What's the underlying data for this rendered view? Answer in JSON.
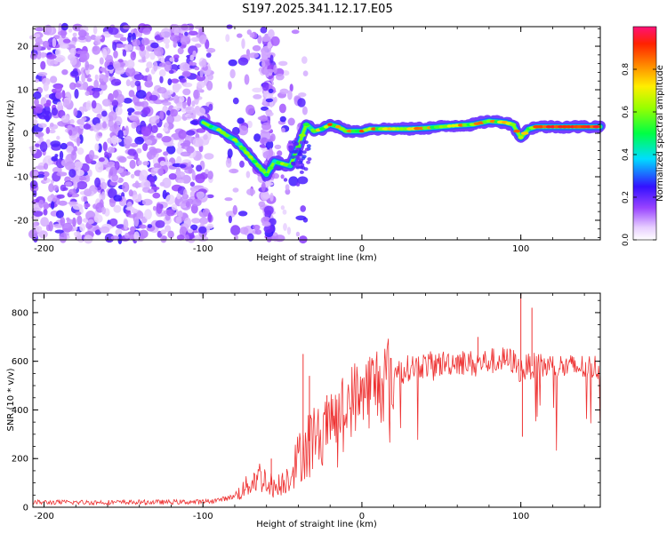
{
  "figure": {
    "title": "S197.2025.341.12.17.E05"
  },
  "chart_data": [
    {
      "type": "heatmap",
      "name": "spectrogram",
      "xlabel": "Height of straight line (km)",
      "ylabel": "Frequency (Hz)",
      "xlim": [
        -207,
        150
      ],
      "ylim": [
        -24.5,
        24.5
      ],
      "xticks": [
        -200,
        -100,
        0,
        100
      ],
      "yticks": [
        -20,
        -10,
        0,
        10,
        20
      ],
      "ridge": {
        "description": "dominant frequency track (Hz) vs height (km)",
        "x": [
          -100,
          -95,
          -90,
          -85,
          -80,
          -75,
          -70,
          -65,
          -60,
          -55,
          -50,
          -45,
          -40,
          -37,
          -35,
          -30,
          -25,
          -20,
          -15,
          -10,
          -5,
          0,
          5,
          10,
          20,
          30,
          40,
          50,
          60,
          70,
          80,
          90,
          95,
          100,
          105,
          110,
          120,
          130,
          140,
          150
        ],
        "y": [
          2.5,
          1.5,
          0.8,
          -0.5,
          -1.5,
          -3.5,
          -5.5,
          -7.5,
          -9.5,
          -6.5,
          -7,
          -7.5,
          -3,
          0,
          2,
          0.5,
          1,
          2,
          1.5,
          0.5,
          0.5,
          0.5,
          1,
          1,
          1,
          1,
          1.2,
          1.5,
          1.8,
          2,
          2.8,
          2.5,
          2,
          -1,
          1,
          1.5,
          1.5,
          1.5,
          1.5,
          1.5
        ]
      },
      "colorbar": {
        "label": "Normalized spectral amplitude",
        "range": [
          0,
          1
        ],
        "ticks": [
          0,
          0.2,
          0.4,
          0.6,
          0.8
        ]
      }
    },
    {
      "type": "line",
      "name": "snr",
      "xlabel": "Height of straight line (km)",
      "ylabel": "SNR (10 * v/v)",
      "xlim": [
        -207,
        150
      ],
      "ylim": [
        0,
        880
      ],
      "xticks": [
        -200,
        -100,
        0,
        100
      ],
      "yticks": [
        0,
        200,
        400,
        600,
        800
      ],
      "color": "#ee3333",
      "envelope": {
        "x": [
          -207,
          -150,
          -100,
          -90,
          -80,
          -75,
          -70,
          -65,
          -60,
          -55,
          -50,
          -45,
          -40,
          -35,
          -30,
          -25,
          -20,
          -15,
          -10,
          -5,
          0,
          5,
          10,
          15,
          20,
          25,
          30,
          40,
          50,
          60,
          70,
          80,
          90,
          95,
          100,
          105,
          110,
          120,
          130,
          140,
          150
        ],
        "y": [
          20,
          20,
          22,
          30,
          45,
          70,
          100,
          130,
          110,
          80,
          100,
          140,
          200,
          260,
          290,
          320,
          340,
          380,
          420,
          450,
          470,
          490,
          510,
          530,
          550,
          560,
          575,
          585,
          590,
          600,
          590,
          600,
          605,
          600,
          560,
          580,
          580,
          580,
          575,
          575,
          575
        ]
      },
      "spikes": [
        {
          "x": -57,
          "y": 200
        },
        {
          "x": -37,
          "y": 630
        },
        {
          "x": -33,
          "y": 540
        },
        {
          "x": -22,
          "y": 460
        },
        {
          "x": 73,
          "y": 700
        },
        {
          "x": 100,
          "y": 880
        },
        {
          "x": 101,
          "y": 290
        },
        {
          "x": 107,
          "y": 820
        }
      ]
    }
  ]
}
